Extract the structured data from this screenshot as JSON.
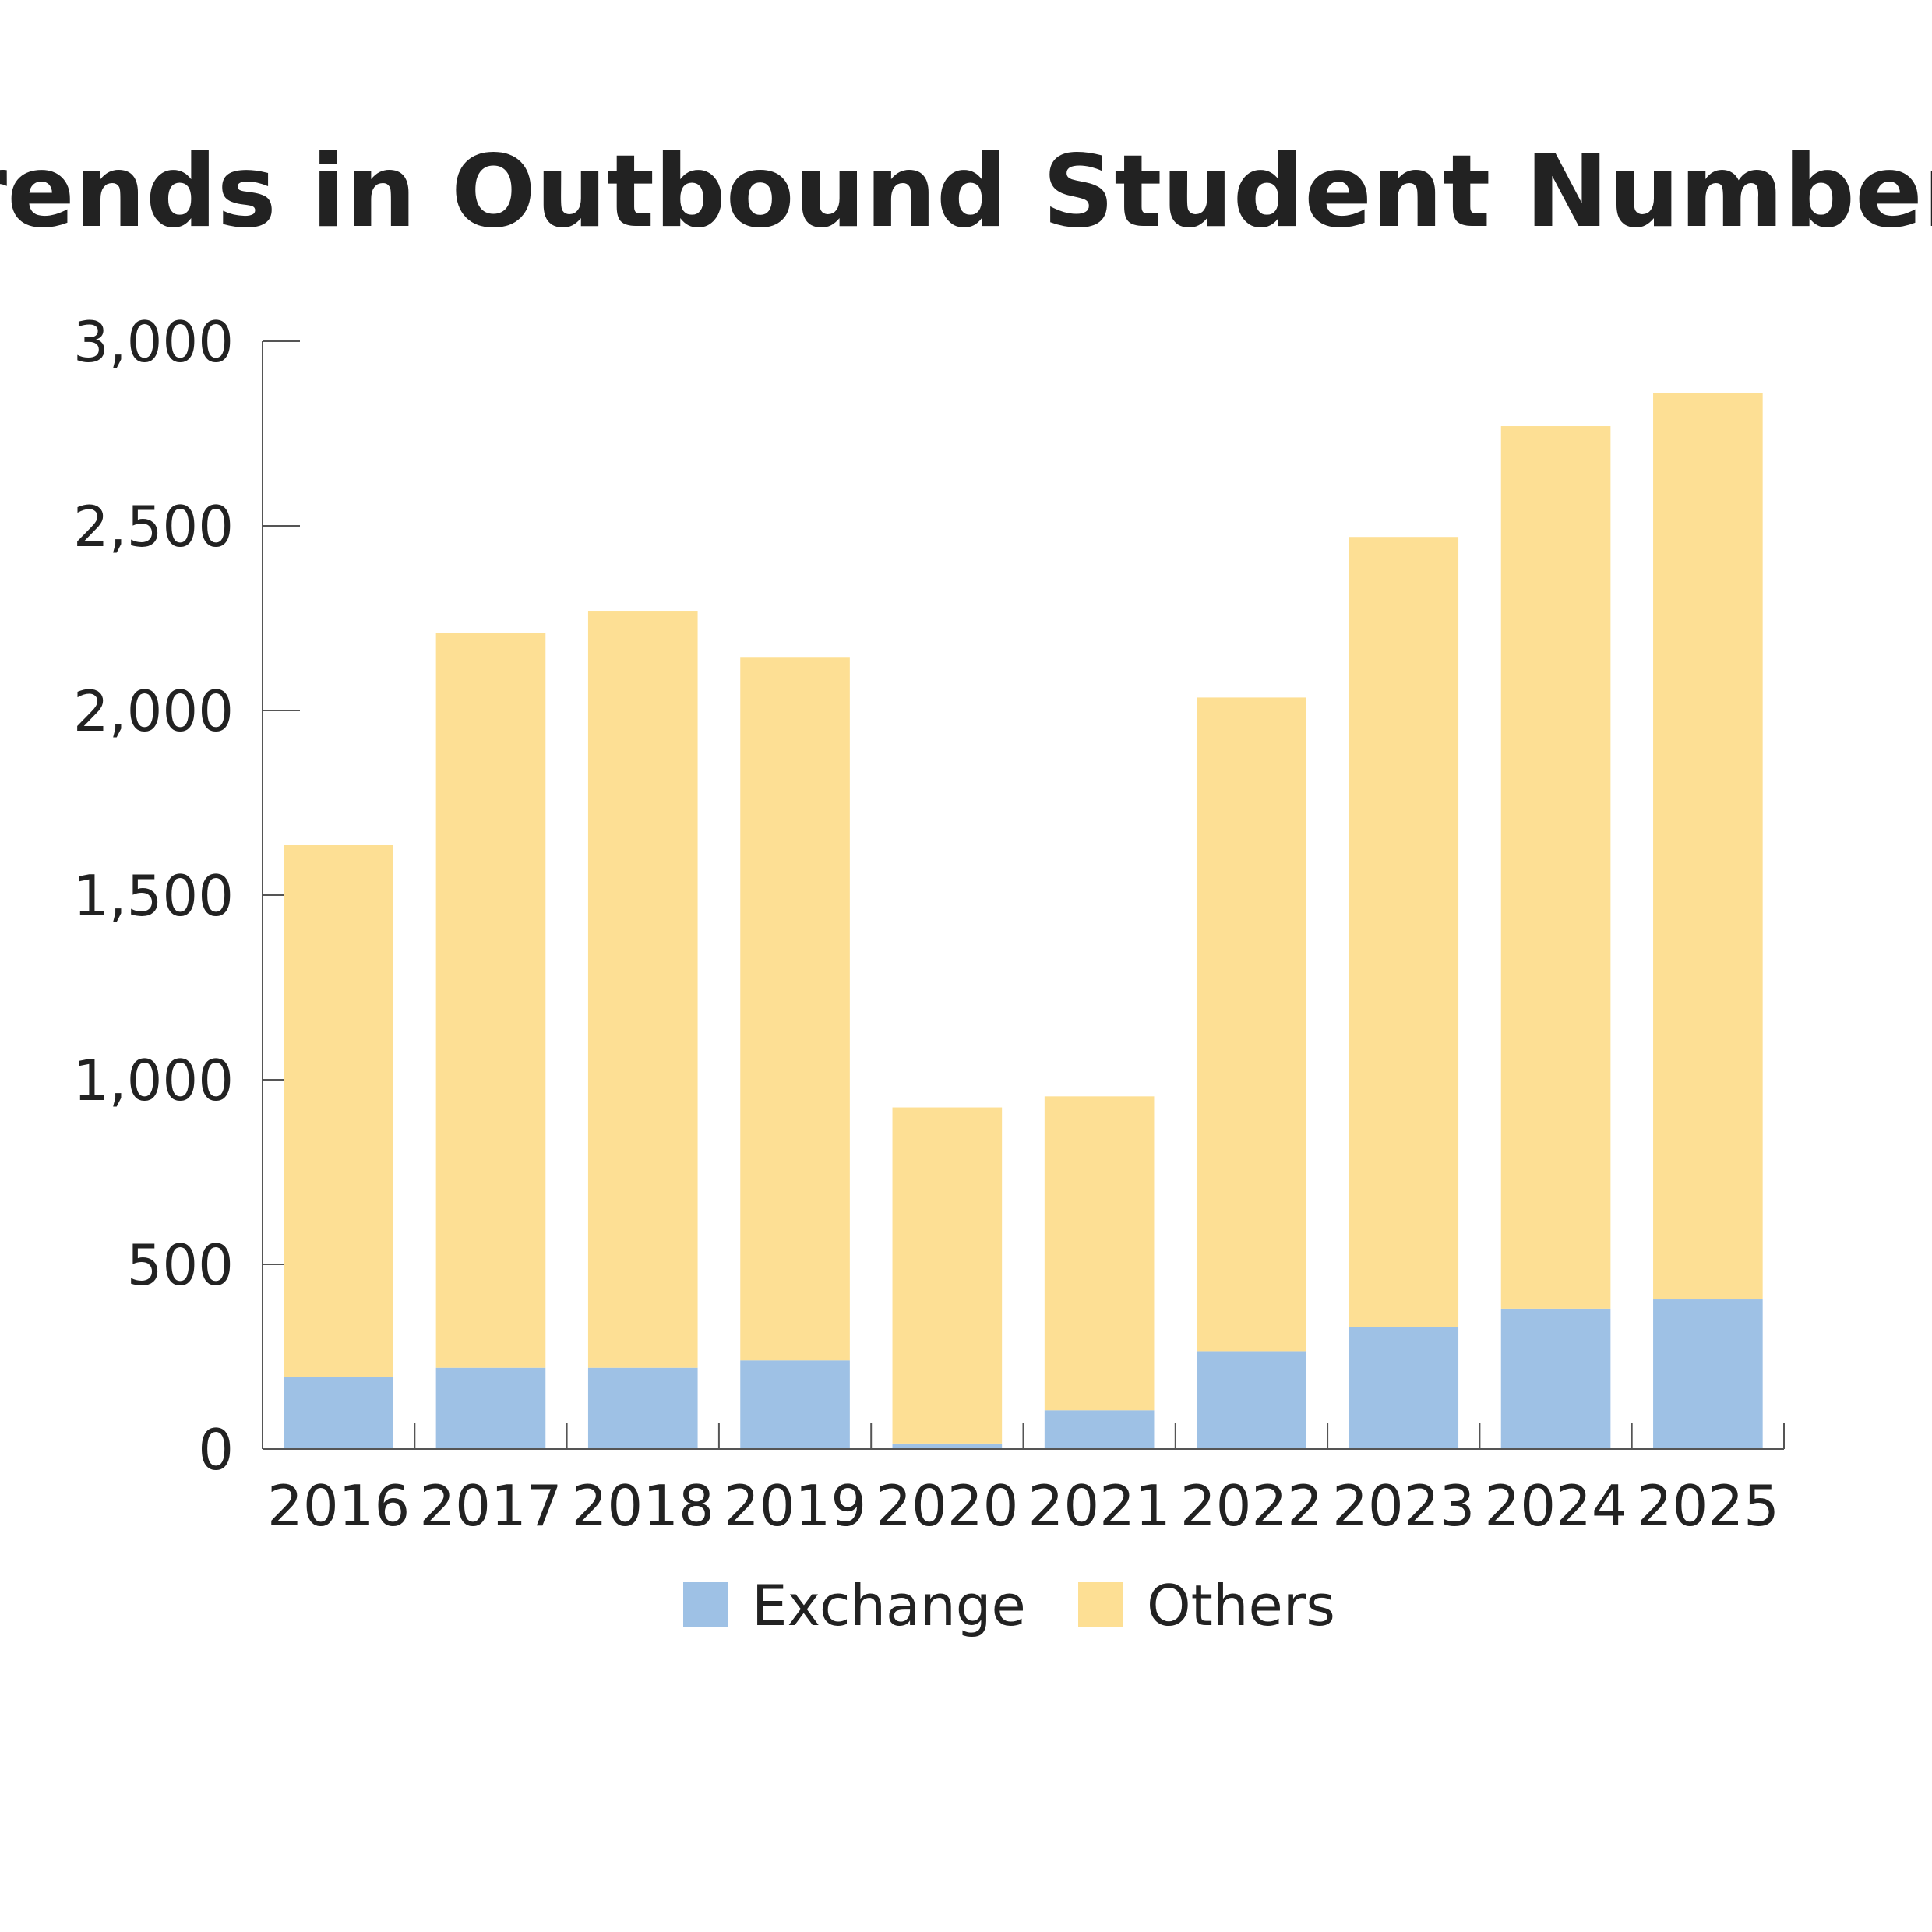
{
  "chart_data": {
    "type": "bar",
    "stacked": true,
    "title": "Trends in Outbound Student Numbers",
    "categories": [
      "2016",
      "2017",
      "2018",
      "2019",
      "2020",
      "2021",
      "2022",
      "2023",
      "2024",
      "2025"
    ],
    "series": [
      {
        "name": "Exchange",
        "color": "#9ec1e5",
        "values": [
          195,
          220,
          220,
          240,
          15,
          105,
          265,
          330,
          380,
          405
        ]
      },
      {
        "name": "Others",
        "color": "#fddf94",
        "values": [
          1440,
          1990,
          2050,
          1905,
          910,
          850,
          1770,
          2140,
          2390,
          2455
        ]
      }
    ],
    "ylim": [
      0,
      3000
    ],
    "yticks": [
      0,
      500,
      1000,
      1500,
      2000,
      2500,
      3000
    ],
    "ytick_labels": [
      "0",
      "500",
      "1,000",
      "1,500",
      "2,000",
      "2,500",
      "3,000"
    ],
    "xlabel": "",
    "ylabel": "",
    "grid": false,
    "legend_position": "bottom-center",
    "axis_color": "#555555"
  }
}
